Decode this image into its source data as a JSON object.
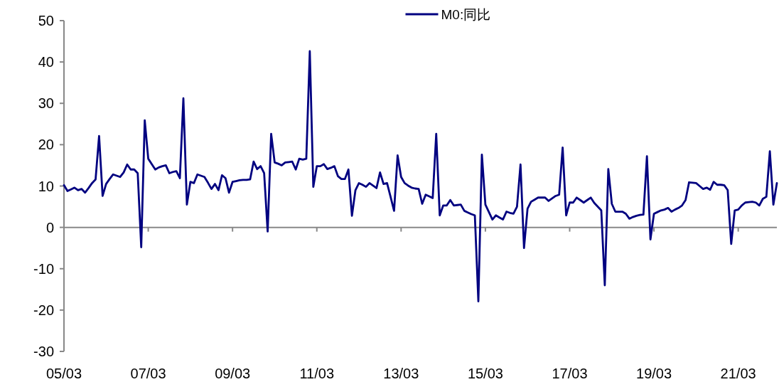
{
  "chart_data": {
    "type": "line",
    "legend": "top",
    "ylim": [
      -30,
      50
    ],
    "yticks": [
      -30,
      -20,
      -10,
      0,
      10,
      20,
      30,
      40,
      50
    ],
    "categories": [
      "05/03",
      null,
      null,
      null,
      null,
      null,
      null,
      null,
      null,
      null,
      null,
      null,
      null,
      null,
      null,
      null,
      null,
      null,
      null,
      null,
      null,
      null,
      null,
      null,
      "07/03",
      null,
      null,
      null,
      null,
      null,
      null,
      null,
      null,
      null,
      null,
      null,
      null,
      null,
      null,
      null,
      null,
      null,
      null,
      null,
      null,
      null,
      null,
      null,
      "09/03",
      null,
      null,
      null,
      null,
      null,
      null,
      null,
      null,
      null,
      null,
      null,
      null,
      null,
      null,
      null,
      null,
      null,
      null,
      null,
      null,
      null,
      null,
      null,
      "11/03",
      null,
      null,
      null,
      null,
      null,
      null,
      null,
      null,
      null,
      null,
      null,
      null,
      null,
      null,
      null,
      null,
      null,
      null,
      null,
      null,
      null,
      null,
      null,
      "13/03",
      null,
      null,
      null,
      null,
      null,
      null,
      null,
      null,
      null,
      null,
      null,
      null,
      null,
      null,
      null,
      null,
      null,
      null,
      null,
      null,
      null,
      null,
      null,
      "15/03",
      null,
      null,
      null,
      null,
      null,
      null,
      null,
      null,
      null,
      null,
      null,
      null,
      null,
      null,
      null,
      null,
      null,
      null,
      null,
      null,
      null,
      null,
      null,
      "17/03",
      null,
      null,
      null,
      null,
      null,
      null,
      null,
      null,
      null,
      null,
      null,
      null,
      null,
      null,
      null,
      null,
      null,
      null,
      null,
      null,
      null,
      null,
      null,
      "19/03",
      null,
      null,
      null,
      null,
      null,
      null,
      null,
      null,
      null,
      null,
      null,
      null,
      null,
      null,
      null,
      null,
      null,
      null,
      null,
      null,
      null,
      null,
      null,
      "21/03",
      null,
      null,
      null,
      null,
      null,
      null,
      null,
      null,
      null,
      null,
      null
    ],
    "series": [
      {
        "name": "M0:同比",
        "color": "#000080",
        "values": [
          10.2,
          8.8,
          9.2,
          9.6,
          9.0,
          9.3,
          8.4,
          9.5,
          10.7,
          11.6,
          22.1,
          7.6,
          10.5,
          11.7,
          12.8,
          12.5,
          12.2,
          13.3,
          15.2,
          14.0,
          14.0,
          13.1,
          -4.8,
          25.9,
          16.6,
          15.3,
          14.0,
          14.5,
          14.8,
          15.0,
          13.1,
          13.4,
          13.6,
          11.9,
          31.2,
          5.5,
          11.0,
          10.7,
          12.8,
          12.5,
          12.2,
          10.8,
          9.3,
          10.5,
          9.0,
          12.6,
          11.9,
          8.4,
          11.0,
          11.2,
          11.4,
          11.5,
          11.5,
          11.6,
          15.9,
          14.1,
          14.8,
          13.1,
          -1.0,
          22.6,
          15.7,
          15.4,
          15.0,
          15.7,
          15.8,
          15.9,
          14.0,
          16.6,
          16.4,
          16.6,
          42.6,
          9.8,
          14.8,
          14.8,
          15.3,
          14.1,
          14.4,
          14.8,
          12.4,
          11.7,
          11.7,
          14.0,
          2.8,
          9.0,
          10.7,
          10.3,
          9.8,
          10.7,
          10.1,
          9.5,
          13.3,
          10.5,
          10.7,
          7.4,
          4.0,
          17.4,
          12.2,
          10.7,
          10.1,
          9.6,
          9.4,
          9.3,
          5.7,
          7.9,
          7.5,
          7.1,
          22.6,
          2.9,
          5.3,
          5.3,
          6.6,
          5.3,
          5.4,
          5.5,
          4.0,
          3.6,
          3.2,
          2.9,
          -17.9,
          17.6,
          5.5,
          3.7,
          1.9,
          2.9,
          2.4,
          1.9,
          3.8,
          3.5,
          3.3,
          5.0,
          15.2,
          -5.0,
          4.5,
          6.2,
          6.7,
          7.2,
          7.2,
          7.2,
          6.4,
          7.0,
          7.6,
          7.9,
          19.3,
          2.9,
          6.0,
          6.0,
          7.2,
          6.6,
          6.0,
          6.6,
          7.2,
          5.9,
          5.0,
          4.1,
          -14.0,
          14.1,
          5.7,
          3.8,
          3.8,
          3.8,
          3.3,
          2.1,
          2.5,
          2.8,
          3.0,
          3.1,
          17.2,
          -2.9,
          3.3,
          3.7,
          4.1,
          4.3,
          4.7,
          3.8,
          4.3,
          4.7,
          5.3,
          6.6,
          10.9,
          10.8,
          10.7,
          10.0,
          9.3,
          9.6,
          9.1,
          11.0,
          10.3,
          10.3,
          10.2,
          9.0,
          -4.0,
          4.1,
          4.3,
          5.3,
          6.0,
          6.1,
          6.2,
          6.0,
          5.3,
          6.9,
          7.4,
          18.4,
          5.5,
          10.7
        ]
      }
    ]
  }
}
